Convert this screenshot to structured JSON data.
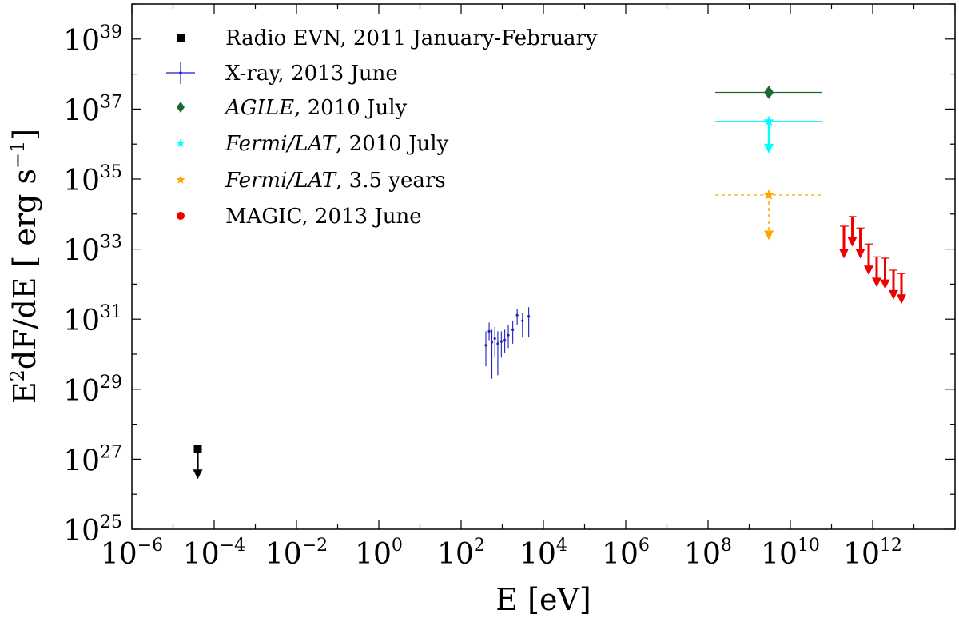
{
  "chart_data": {
    "type": "scatter",
    "title": "",
    "xlabel": "E [eV]",
    "ylabel": "E²dF/dE [ erg s⁻¹]",
    "ylabel_parts": {
      "main": "E",
      "sup1": "2",
      "mid": "dF/dE [ erg s",
      "sup2": "−1",
      "end": "]"
    },
    "xscale": "log",
    "yscale": "log",
    "xlim": [
      1e-06,
      100000000000000.0
    ],
    "ylim": [
      1e+25,
      1e+40
    ],
    "x_ticks": [
      {
        "base": "10",
        "exp": "−6",
        "value": 1e-06
      },
      {
        "base": "10",
        "exp": "−4",
        "value": 0.0001
      },
      {
        "base": "10",
        "exp": "−2",
        "value": 0.01
      },
      {
        "base": "10",
        "exp": "0",
        "value": 1
      },
      {
        "base": "10",
        "exp": "2",
        "value": 100.0
      },
      {
        "base": "10",
        "exp": "4",
        "value": 10000.0
      },
      {
        "base": "10",
        "exp": "6",
        "value": 1000000.0
      },
      {
        "base": "10",
        "exp": "8",
        "value": 100000000.0
      },
      {
        "base": "10",
        "exp": "10",
        "value": 10000000000.0
      },
      {
        "base": "10",
        "exp": "12",
        "value": 1000000000000.0
      }
    ],
    "y_ticks": [
      {
        "base": "10",
        "exp": "25",
        "value": 1e+25
      },
      {
        "base": "10",
        "exp": "27",
        "value": 1e+27
      },
      {
        "base": "10",
        "exp": "29",
        "value": 1e+29
      },
      {
        "base": "10",
        "exp": "31",
        "value": 1e+31
      },
      {
        "base": "10",
        "exp": "33",
        "value": 1e+33
      },
      {
        "base": "10",
        "exp": "35",
        "value": 1e+35
      },
      {
        "base": "10",
        "exp": "37",
        "value": 1e+37
      },
      {
        "base": "10",
        "exp": "39",
        "value": 1e+39
      }
    ],
    "grid": false,
    "legend_position": "top-left",
    "series": [
      {
        "name_parts": [
          {
            "text": "Radio EVN, 2011 January-February",
            "italic": false
          }
        ],
        "marker": "square",
        "color": "#000000",
        "points": [
          {
            "x": 4e-05,
            "y": 2e+27,
            "upper_limit": true,
            "arrow_to": 3e+26
          }
        ]
      },
      {
        "name_parts": [
          {
            "text": "X-ray, 2013 June",
            "italic": false
          }
        ],
        "marker": "cross",
        "color": "#1f1fbf",
        "points": [
          {
            "x": 400,
            "y": 1.8e+30,
            "yerr": [
              4.5e+29,
              4.5e+30
            ]
          },
          {
            "x": 480,
            "y": 4.5e+30,
            "yerr": [
              2.5e+30,
              8e+30
            ]
          },
          {
            "x": 560,
            "y": 2.2e+30,
            "yerr": [
              2e+29,
              5e+30
            ]
          },
          {
            "x": 660,
            "y": 2.8e+30,
            "yerr": [
              8e+29,
              6e+30
            ]
          },
          {
            "x": 780,
            "y": 2e+30,
            "yerr": [
              2.5e+29,
              4.5e+30
            ]
          },
          {
            "x": 950,
            "y": 2.3e+30,
            "yerr": [
              8e+29,
              4.5e+30
            ]
          },
          {
            "x": 1150,
            "y": 2.5e+30,
            "yerr": [
              1.1e+30,
              5e+30
            ]
          },
          {
            "x": 1400,
            "y": 3.5e+30,
            "yerr": [
              1.5e+30,
              7e+30
            ]
          },
          {
            "x": 1800,
            "y": 5e+30,
            "yerr": [
              2e+30,
              9e+30
            ]
          },
          {
            "x": 2300,
            "y": 1.3e+31,
            "yerr": [
              7e+30,
              2e+31
            ]
          },
          {
            "x": 3100,
            "y": 9e+30,
            "yerr": [
              3e+30,
              1.5e+31
            ]
          },
          {
            "x": 4400,
            "y": 1.2e+31,
            "yerr": [
              3e+30,
              2.2e+31
            ]
          }
        ]
      },
      {
        "name_parts": [
          {
            "text": "AGILE",
            "italic": true
          },
          {
            "text": ", 2010 July",
            "italic": false
          }
        ],
        "marker": "diamond",
        "color": "#1a6b2f",
        "points": [
          {
            "x": 3000000000.0,
            "y": 3e+37,
            "xerr": [
              150000000.0,
              60000000000.0
            ]
          }
        ]
      },
      {
        "name_parts": [
          {
            "text": "Fermi/LAT",
            "italic": true
          },
          {
            "text": ", 2010 July",
            "italic": false
          }
        ],
        "marker": "star",
        "color": "#00ffff",
        "points": [
          {
            "x": 3000000000.0,
            "y": 4.5e+36,
            "xerr": [
              150000000.0,
              60000000000.0
            ],
            "upper_limit": true,
            "arrow_to": 6e+35
          }
        ]
      },
      {
        "name_parts": [
          {
            "text": "Fermi/LAT",
            "italic": true
          },
          {
            "text": ", 3.5 years",
            "italic": false
          }
        ],
        "marker": "star",
        "color": "#ffa500",
        "linestyle": "dotted",
        "points": [
          {
            "x": 3000000000.0,
            "y": 3.5e+34,
            "xerr": [
              150000000.0,
              60000000000.0
            ],
            "upper_limit": true,
            "arrow_to": 2e+33
          }
        ]
      },
      {
        "name_parts": [
          {
            "text": "MAGIC, 2013 June",
            "italic": false
          }
        ],
        "marker": "circle",
        "color": "#ee0000",
        "points": [
          {
            "x": 200000000000.0,
            "y": 4.5e+33,
            "xerr": [
              160000000000.0,
              260000000000.0
            ],
            "upper_limit": true,
            "arrow_to": 6e+32
          },
          {
            "x": 320000000000.0,
            "y": 8.5e+33,
            "xerr": [
              260000000000.0,
              400000000000.0
            ],
            "upper_limit": true,
            "arrow_to": 1.3e+33
          },
          {
            "x": 500000000000.0,
            "y": 4e+33,
            "xerr": [
              400000000000.0,
              630000000000.0
            ],
            "upper_limit": true,
            "arrow_to": 6e+32
          },
          {
            "x": 800000000000.0,
            "y": 1.4e+33,
            "xerr": [
              630000000000.0,
              1000000000000.0
            ],
            "upper_limit": true,
            "arrow_to": 2e+32
          },
          {
            "x": 1250000000000.0,
            "y": 6e+32,
            "xerr": [
              1000000000000.0,
              1600000000000.0
            ],
            "upper_limit": true,
            "arrow_to": 9e+31
          },
          {
            "x": 2000000000000.0,
            "y": 5.5e+32,
            "xerr": [
              1600000000000.0,
              2500000000000.0
            ],
            "upper_limit": true,
            "arrow_to": 8e+31
          },
          {
            "x": 3200000000000.0,
            "y": 2.5e+32,
            "xerr": [
              2500000000000.0,
              4000000000000.0
            ],
            "upper_limit": true,
            "arrow_to": 4e+31
          },
          {
            "x": 5000000000000.0,
            "y": 2e+32,
            "xerr": [
              4000000000000.0,
              6300000000000.0
            ],
            "upper_limit": true,
            "arrow_to": 3e+31
          }
        ]
      }
    ]
  }
}
